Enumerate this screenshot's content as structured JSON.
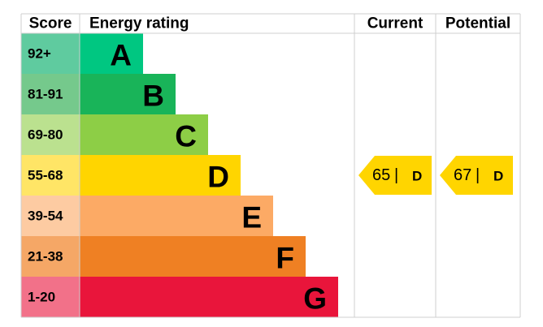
{
  "header": {
    "score": "Score",
    "rating": "Energy rating",
    "current": "Current",
    "potential": "Potential"
  },
  "rows": [
    {
      "score": "92+",
      "band": "A",
      "color": "#00c781",
      "score_color": "#5fcb9f"
    },
    {
      "score": "81-91",
      "band": "B",
      "color": "#19b459",
      "score_color": "#75c98c"
    },
    {
      "score": "69-80",
      "band": "C",
      "color": "#8dce46",
      "score_color": "#bbe18f"
    },
    {
      "score": "55-68",
      "band": "D",
      "color": "#ffd500",
      "score_color": "#ffe566"
    },
    {
      "score": "39-54",
      "band": "E",
      "color": "#fcaa65",
      "score_color": "#fdcba2"
    },
    {
      "score": "21-38",
      "band": "F",
      "color": "#ef8023",
      "score_color": "#f5a766"
    },
    {
      "score": "1-20",
      "band": "G",
      "color": "#e9153b",
      "score_color": "#f27189"
    }
  ],
  "current": {
    "value": 65,
    "separator": "|",
    "band": "D"
  },
  "potential": {
    "value": 67,
    "separator": "|",
    "band": "D"
  }
}
